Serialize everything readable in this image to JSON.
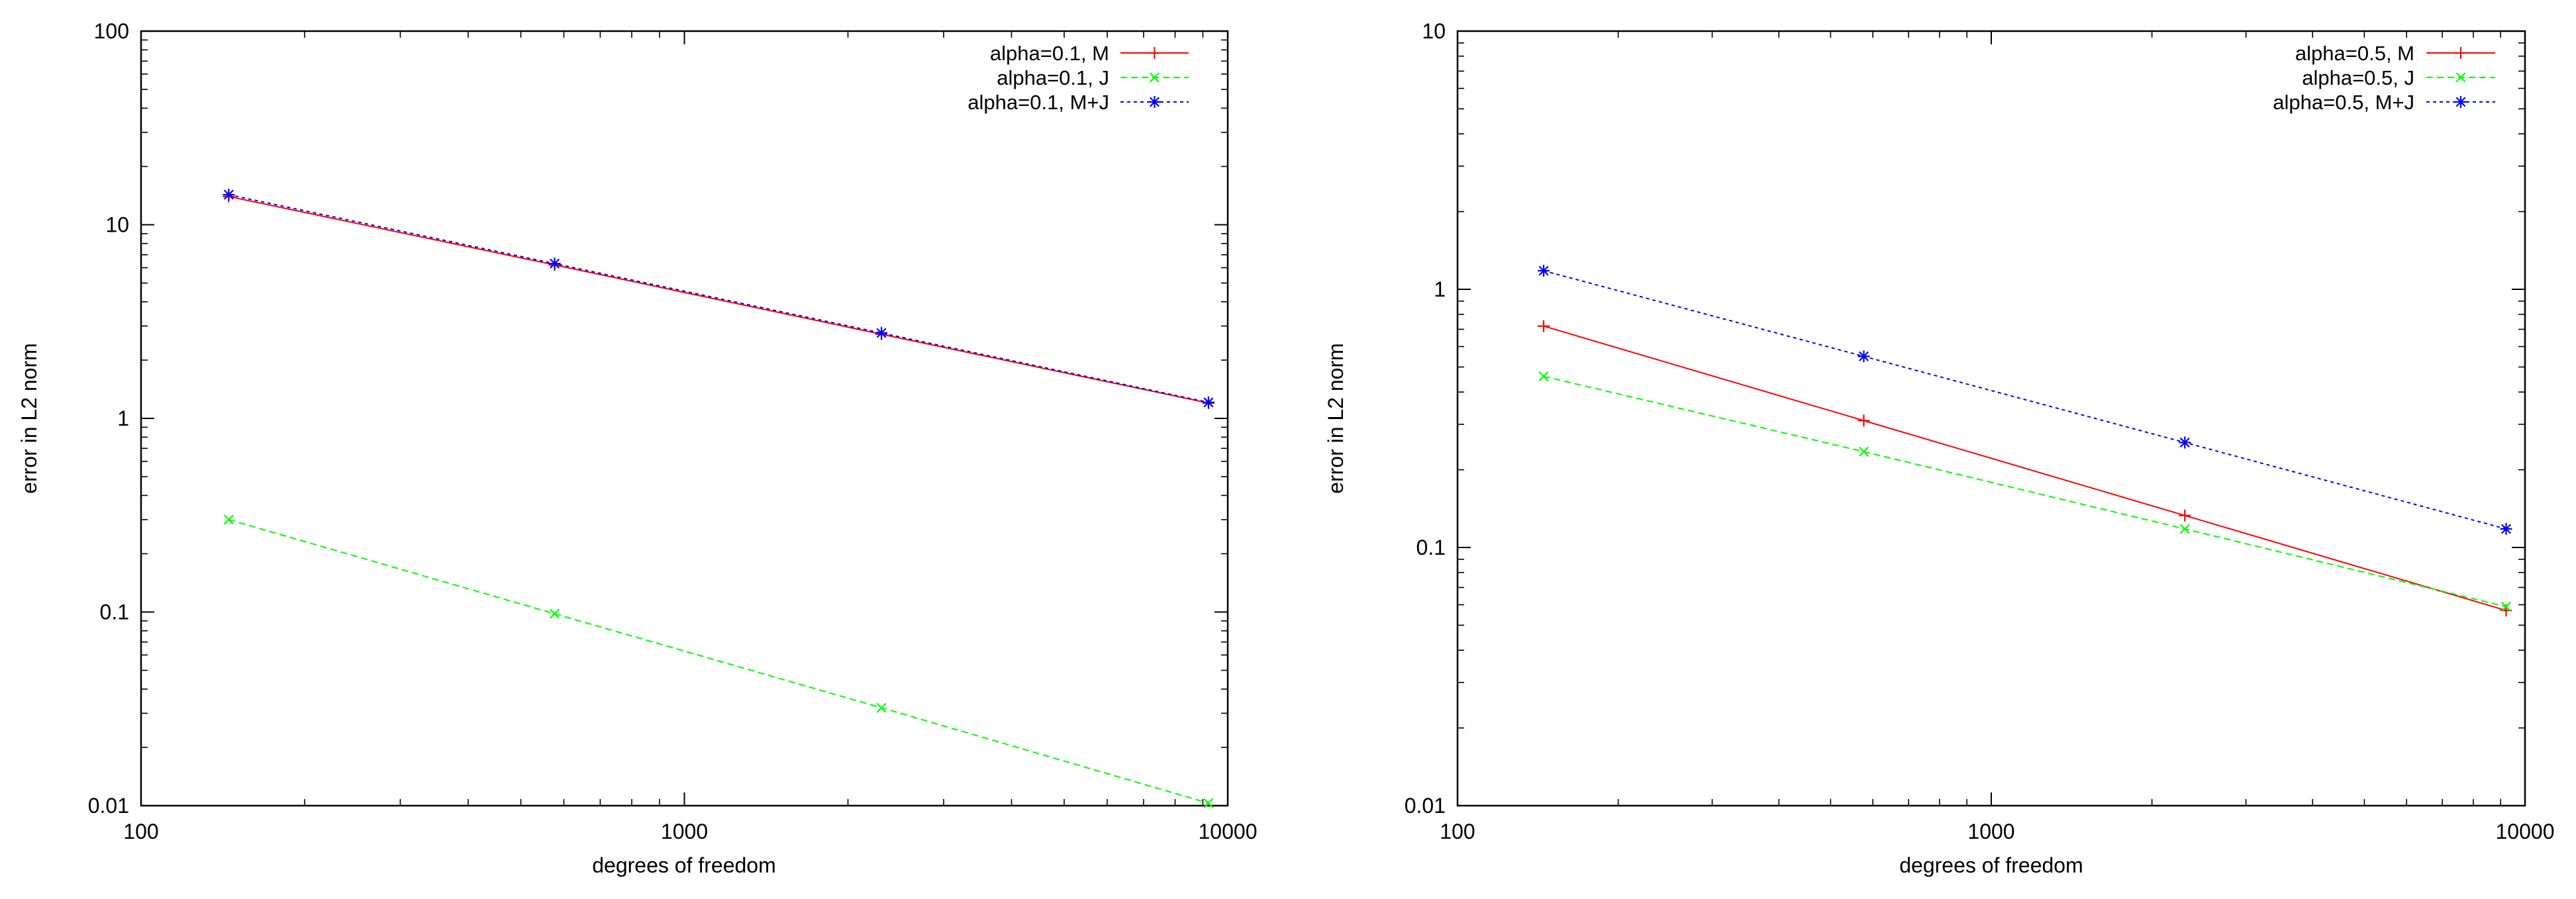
{
  "chart_data": [
    {
      "type": "line",
      "x_scale": "log",
      "y_scale": "log",
      "xlabel": "degrees of freedom",
      "ylabel": "error in L2 norm",
      "xlim": [
        100,
        10000
      ],
      "ylim": [
        0.01,
        100
      ],
      "x_ticks": [
        100,
        1000,
        10000
      ],
      "x_tick_labels": [
        "100",
        "1000",
        "10000"
      ],
      "y_ticks": [
        0.01,
        0.1,
        1,
        10,
        100
      ],
      "y_tick_labels": [
        "0.01",
        "0.1",
        "1",
        "10",
        "100"
      ],
      "legend_position": "top-right",
      "x": [
        145,
        577,
        2305,
        9217
      ],
      "series": [
        {
          "name": "alpha=0.1, M",
          "color": "#ff0000",
          "marker": "plus",
          "dash": "solid",
          "values": [
            14.0,
            6.2,
            2.72,
            1.2
          ]
        },
        {
          "name": "alpha=0.1, J",
          "color": "#00ff00",
          "marker": "cross",
          "dash": "dashed",
          "values": [
            0.3,
            0.098,
            0.032,
            0.0103
          ]
        },
        {
          "name": "alpha=0.1, M+J",
          "color": "#0000ff",
          "marker": "star",
          "dash": "dotted",
          "values": [
            14.3,
            6.3,
            2.76,
            1.21
          ]
        }
      ]
    },
    {
      "type": "line",
      "x_scale": "log",
      "y_scale": "log",
      "xlabel": "degrees of freedom",
      "ylabel": "error in L2 norm",
      "xlim": [
        100,
        10000
      ],
      "ylim": [
        0.01,
        10
      ],
      "x_ticks": [
        100,
        1000,
        10000
      ],
      "x_tick_labels": [
        "100",
        "1000",
        "10000"
      ],
      "y_ticks": [
        0.01,
        0.1,
        1,
        10
      ],
      "y_tick_labels": [
        "0.01",
        "0.1",
        "1",
        "10"
      ],
      "legend_position": "top-right",
      "x": [
        145,
        577,
        2305,
        9217
      ],
      "series": [
        {
          "name": "alpha=0.5, M",
          "color": "#ff0000",
          "marker": "plus",
          "dash": "solid",
          "values": [
            0.72,
            0.31,
            0.133,
            0.057
          ]
        },
        {
          "name": "alpha=0.5, J",
          "color": "#00ff00",
          "marker": "cross",
          "dash": "dashed",
          "values": [
            0.46,
            0.235,
            0.118,
            0.059
          ]
        },
        {
          "name": "alpha=0.5, M+J",
          "color": "#0000ff",
          "marker": "star",
          "dash": "dotted",
          "values": [
            1.18,
            0.55,
            0.255,
            0.118
          ]
        }
      ]
    }
  ]
}
